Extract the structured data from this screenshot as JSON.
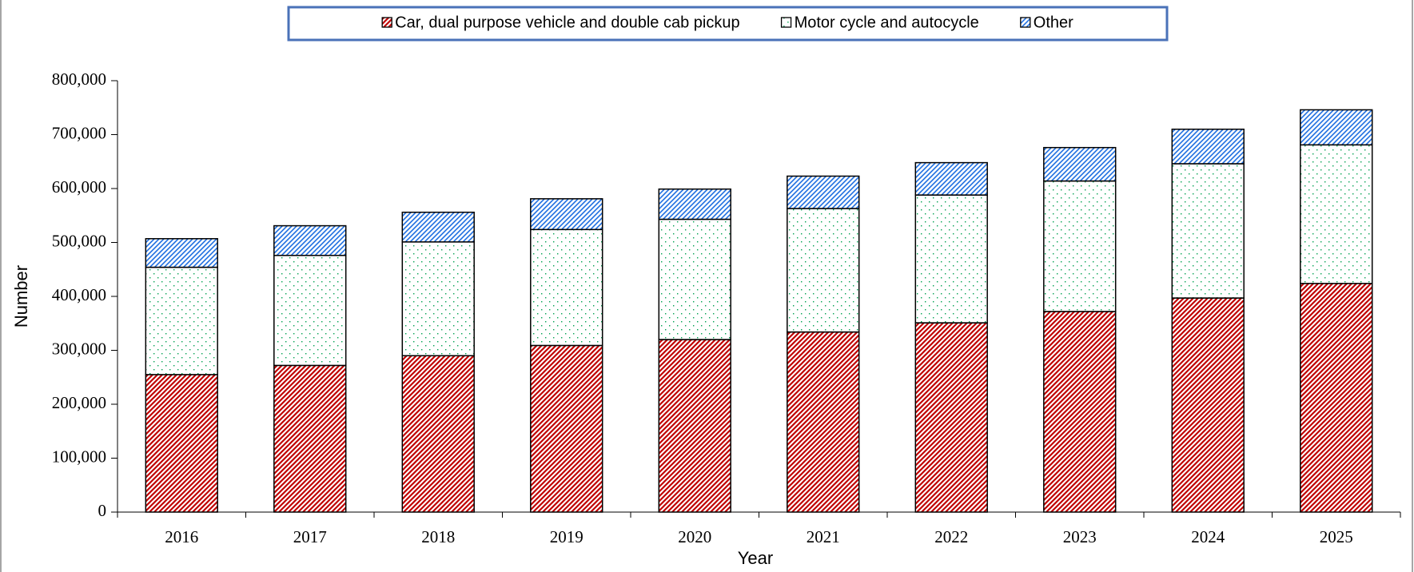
{
  "chart_data": {
    "type": "stacked_bar",
    "x_label": "Year",
    "y_label": "Number",
    "categories": [
      "2016",
      "2017",
      "2018",
      "2019",
      "2020",
      "2021",
      "2022",
      "2023",
      "2024",
      "2025"
    ],
    "series": [
      {
        "name": "Car, dual purpose vehicle and double cab pickup",
        "color": "#c00000",
        "values": [
          255000,
          272000,
          290000,
          309000,
          320000,
          334000,
          351000,
          372000,
          397000,
          424000
        ]
      },
      {
        "name": "Motor cycle and autocycle",
        "color": "#00a050",
        "values": [
          199000,
          204000,
          211000,
          215000,
          223000,
          229000,
          237000,
          242000,
          249000,
          257000
        ]
      },
      {
        "name": "Other",
        "color": "#1f6fe0",
        "values": [
          53000,
          55000,
          55000,
          57000,
          56000,
          60000,
          60000,
          62000,
          64000,
          65000
        ]
      }
    ],
    "ylim": [
      0,
      800000
    ],
    "yticks": [
      0,
      {
        "value": 100000,
        "label": "100,000"
      },
      {
        "value": 200000,
        "label": "200,000"
      },
      {
        "value": 300000,
        "label": "300,000"
      },
      {
        "value": 400000,
        "label": "400,000"
      },
      {
        "value": 500000,
        "label": "500,000"
      },
      {
        "value": 600000,
        "label": "600,000"
      },
      {
        "value": 700000,
        "label": "700,000"
      },
      {
        "value": 800000,
        "label": "800,000"
      }
    ],
    "legend": "top"
  }
}
